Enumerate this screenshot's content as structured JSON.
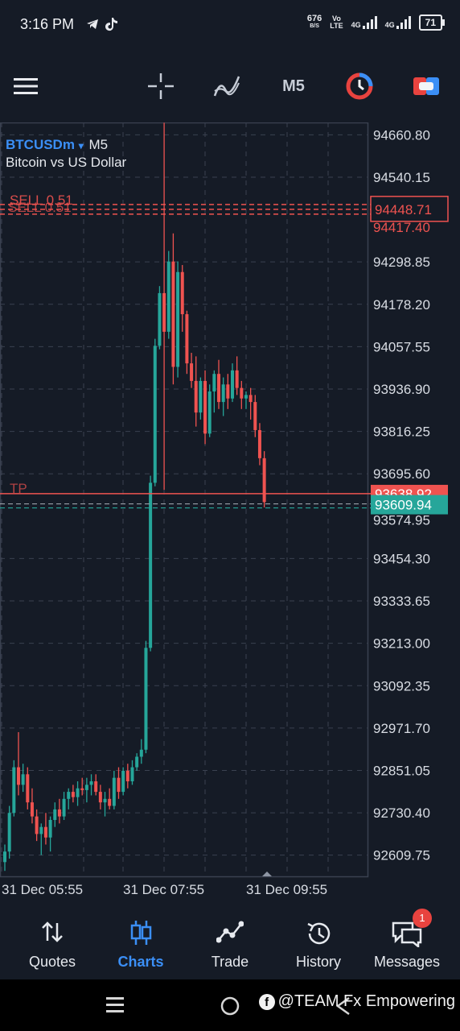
{
  "status_bar": {
    "time": "3:16 PM",
    "net_speed": "676",
    "net_unit": "B/S",
    "volte_top": "Vo",
    "volte_bottom": "LTE",
    "signal1_label": "4G",
    "signal2_label": "4G",
    "battery": "71"
  },
  "toolbar": {
    "timeframe": "M5",
    "accent_red": "#e8433f",
    "accent_blue": "#3b8ff6"
  },
  "chart": {
    "symbol": "BTCUSDm",
    "symbol_caret": "▾",
    "timeframe": "M5",
    "description": "Bitcoin vs US Dollar",
    "sell_label_1": "SELL 0.51",
    "sell_label_2": "SELL 0.51",
    "sell_price": "94448.71",
    "sell_hidden_price": "94417.40",
    "tp_label": "TP",
    "tp_price": "93638.92",
    "bid_price": "93609.94",
    "bid_hidden_price": "93574.95",
    "price_labels": [
      "94660.80",
      "94540.15",
      "94298.85",
      "94178.20",
      "94057.55",
      "93936.90",
      "93816.25",
      "93695.60",
      "93454.30",
      "93333.65",
      "93213.00",
      "93092.35",
      "92971.70",
      "92851.05",
      "92730.40",
      "92609.75"
    ],
    "time_labels": [
      "31 Dec 05:55",
      "31 Dec 07:55",
      "31 Dec 09:55"
    ],
    "colors": {
      "up": "#26a69a",
      "down": "#ef5350",
      "grid": "#3a4150"
    }
  },
  "chart_data": {
    "type": "candlestick",
    "ylim": [
      92549.4,
      94696
    ],
    "y_ticks": [
      94660.8,
      94540.15,
      94298.85,
      94178.2,
      94057.55,
      93936.9,
      93816.25,
      93695.6,
      93454.3,
      93333.65,
      93213.0,
      93092.35,
      92971.7,
      92851.05,
      92730.4,
      92609.75
    ],
    "x_labels": [
      "31 Dec 05:55",
      "31 Dec 07:55",
      "31 Dec 09:55"
    ],
    "lines": {
      "sell": 94448.71,
      "tp": 93638.92,
      "bid": 93609.94
    },
    "candles": [
      {
        "o": 92590,
        "h": 92640,
        "l": 92565,
        "c": 92620
      },
      {
        "o": 92620,
        "h": 92750,
        "l": 92600,
        "c": 92730
      },
      {
        "o": 92730,
        "h": 92880,
        "l": 92720,
        "c": 92860
      },
      {
        "o": 92860,
        "h": 92960,
        "l": 92780,
        "c": 92810
      },
      {
        "o": 92810,
        "h": 92870,
        "l": 92790,
        "c": 92840
      },
      {
        "o": 92840,
        "h": 92860,
        "l": 92740,
        "c": 92760
      },
      {
        "o": 92760,
        "h": 92800,
        "l": 92700,
        "c": 92720
      },
      {
        "o": 92720,
        "h": 92740,
        "l": 92650,
        "c": 92670
      },
      {
        "o": 92670,
        "h": 92700,
        "l": 92610,
        "c": 92690
      },
      {
        "o": 92690,
        "h": 92730,
        "l": 92640,
        "c": 92660
      },
      {
        "o": 92660,
        "h": 92720,
        "l": 92620,
        "c": 92710
      },
      {
        "o": 92710,
        "h": 92760,
        "l": 92690,
        "c": 92740
      },
      {
        "o": 92740,
        "h": 92770,
        "l": 92700,
        "c": 92720
      },
      {
        "o": 92720,
        "h": 92790,
        "l": 92710,
        "c": 92770
      },
      {
        "o": 92770,
        "h": 92800,
        "l": 92740,
        "c": 92790
      },
      {
        "o": 92790,
        "h": 92810,
        "l": 92760,
        "c": 92775
      },
      {
        "o": 92775,
        "h": 92820,
        "l": 92750,
        "c": 92800
      },
      {
        "o": 92800,
        "h": 92830,
        "l": 92780,
        "c": 92795
      },
      {
        "o": 92795,
        "h": 92830,
        "l": 92760,
        "c": 92810
      },
      {
        "o": 92810,
        "h": 92840,
        "l": 92780,
        "c": 92820
      },
      {
        "o": 92820,
        "h": 92840,
        "l": 92780,
        "c": 92790
      },
      {
        "o": 92790,
        "h": 92810,
        "l": 92740,
        "c": 92760
      },
      {
        "o": 92760,
        "h": 92790,
        "l": 92720,
        "c": 92770
      },
      {
        "o": 92770,
        "h": 92800,
        "l": 92740,
        "c": 92750
      },
      {
        "o": 92750,
        "h": 92850,
        "l": 92740,
        "c": 92830
      },
      {
        "o": 92830,
        "h": 92860,
        "l": 92770,
        "c": 92790
      },
      {
        "o": 92790,
        "h": 92860,
        "l": 92780,
        "c": 92850
      },
      {
        "o": 92850,
        "h": 92870,
        "l": 92800,
        "c": 92820
      },
      {
        "o": 92820,
        "h": 92880,
        "l": 92810,
        "c": 92860
      },
      {
        "o": 92860,
        "h": 92900,
        "l": 92850,
        "c": 92890
      },
      {
        "o": 92890,
        "h": 92940,
        "l": 92870,
        "c": 92910
      },
      {
        "o": 92910,
        "h": 93220,
        "l": 92900,
        "c": 93200
      },
      {
        "o": 93200,
        "h": 93690,
        "l": 93190,
        "c": 93670
      },
      {
        "o": 93670,
        "h": 94080,
        "l": 93660,
        "c": 94060
      },
      {
        "o": 94060,
        "h": 94230,
        "l": 94050,
        "c": 94210
      },
      {
        "o": 94210,
        "h": 94695,
        "l": 93650,
        "c": 94100
      },
      {
        "o": 94100,
        "h": 94330,
        "l": 94080,
        "c": 94300
      },
      {
        "o": 94300,
        "h": 94380,
        "l": 93950,
        "c": 94000
      },
      {
        "o": 94000,
        "h": 94300,
        "l": 93970,
        "c": 94270
      },
      {
        "o": 94270,
        "h": 94290,
        "l": 94100,
        "c": 94150
      },
      {
        "o": 94150,
        "h": 94160,
        "l": 93980,
        "c": 94010
      },
      {
        "o": 94010,
        "h": 94040,
        "l": 93940,
        "c": 93960
      },
      {
        "o": 93960,
        "h": 94030,
        "l": 93830,
        "c": 93870
      },
      {
        "o": 93870,
        "h": 93970,
        "l": 93850,
        "c": 93960
      },
      {
        "o": 93960,
        "h": 93990,
        "l": 93780,
        "c": 93810
      },
      {
        "o": 93810,
        "h": 93950,
        "l": 93800,
        "c": 93930
      },
      {
        "o": 93930,
        "h": 93990,
        "l": 93870,
        "c": 93980
      },
      {
        "o": 93980,
        "h": 94020,
        "l": 93880,
        "c": 93900
      },
      {
        "o": 93900,
        "h": 93970,
        "l": 93860,
        "c": 93950
      },
      {
        "o": 93950,
        "h": 93980,
        "l": 93880,
        "c": 93910
      },
      {
        "o": 93910,
        "h": 94010,
        "l": 93900,
        "c": 93990
      },
      {
        "o": 93990,
        "h": 94030,
        "l": 93920,
        "c": 93940
      },
      {
        "o": 93940,
        "h": 93960,
        "l": 93880,
        "c": 93910
      },
      {
        "o": 93910,
        "h": 93930,
        "l": 93880,
        "c": 93920
      },
      {
        "o": 93920,
        "h": 93940,
        "l": 93850,
        "c": 93900
      },
      {
        "o": 93900,
        "h": 93920,
        "l": 93800,
        "c": 93820
      },
      {
        "o": 93820,
        "h": 93840,
        "l": 93720,
        "c": 93740
      },
      {
        "o": 93740,
        "h": 93760,
        "l": 93600,
        "c": 93615
      }
    ]
  },
  "bottom_nav": [
    {
      "id": "quotes",
      "label": "Quotes",
      "active": false
    },
    {
      "id": "charts",
      "label": "Charts",
      "active": true
    },
    {
      "id": "trade",
      "label": "Trade",
      "active": false
    },
    {
      "id": "history",
      "label": "History",
      "active": false
    },
    {
      "id": "messages",
      "label": "Messages",
      "active": false,
      "badge": "1"
    }
  ],
  "watermark": {
    "icon_letter": "f",
    "text": "@TEAM Fx Empowering"
  }
}
